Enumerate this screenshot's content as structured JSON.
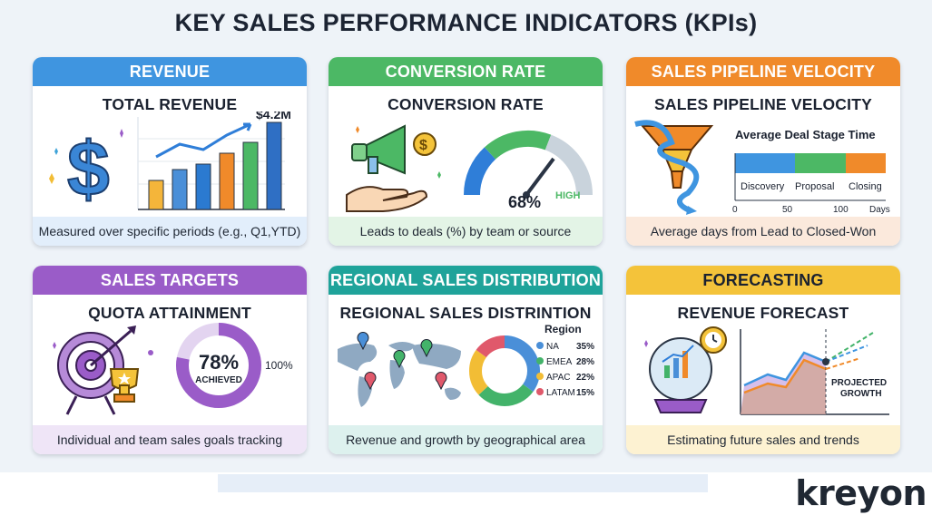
{
  "title": "KEY SALES PERFORMANCE INDICATORS (KPIs)",
  "brand": "kreyon",
  "colors": {
    "blue": "#3f95e0",
    "green": "#4cb865",
    "orange": "#f08a2a",
    "purple": "#9a5cc8",
    "teal": "#1fa39a",
    "yellow": "#f4c33a"
  },
  "cards": {
    "revenue": {
      "header": "REVENUE",
      "subtitle": "TOTAL REVENUE",
      "value": "$4.2M",
      "icon": "dollar-sign-icon",
      "footer": "Measured over specific periods (e.g., Q1,YTD)"
    },
    "conversion": {
      "header": "CONVERSION RATE",
      "subtitle": "CONVERSION RATE",
      "value": "68%",
      "gauge_label": "HIGH",
      "gauge_level": 0.68,
      "icon": "megaphone-icon",
      "footer": "Leads to deals (%) by team or source"
    },
    "pipeline": {
      "header": "SALES PIPELINE VELOCITY",
      "subtitle": "SALES PIPELINE VELOCITY",
      "chart_title": "Average Deal Stage Time",
      "stages": [
        "Discovery",
        "Proposal",
        "Closing"
      ],
      "ticks": [
        "0",
        "50",
        "100",
        "Days"
      ],
      "icon": "funnel-icon",
      "footer": "Average days from Lead to Closed-Won"
    },
    "targets": {
      "header": "SALES TARGETS",
      "subtitle": "QUOTA ATTAINMENT",
      "value": "78%",
      "value_label": "ACHIEVED",
      "goal": "100%",
      "level": 0.78,
      "icon": "target-icon",
      "footer": "Individual and team sales goals tracking"
    },
    "regional": {
      "header": "REGIONAL SALES DISTRIBUTION",
      "subtitle": "REGIONAL SALES DISTRINTION",
      "legend_title": "Region",
      "regions": [
        {
          "name": "NA",
          "pct": "35%",
          "value": 35,
          "color": "#4a8fd8"
        },
        {
          "name": "EMEA",
          "pct": "28%",
          "value": 28,
          "color": "#43b36a"
        },
        {
          "name": "APAC",
          "pct": "22%",
          "value": 22,
          "color": "#f2bd35"
        },
        {
          "name": "LATAM",
          "pct": "15%",
          "value": 15,
          "color": "#e0596b"
        }
      ],
      "icon": "world-map-icon",
      "footer": "Revenue and growth by geographical area"
    },
    "forecast": {
      "header": "FORECASTING",
      "subtitle": "REVENUE FORECAST",
      "projected": "PROJECTED\nGROWTH",
      "icon": "crystal-ball-icon",
      "footer": "Estimating future sales and trends"
    }
  }
}
